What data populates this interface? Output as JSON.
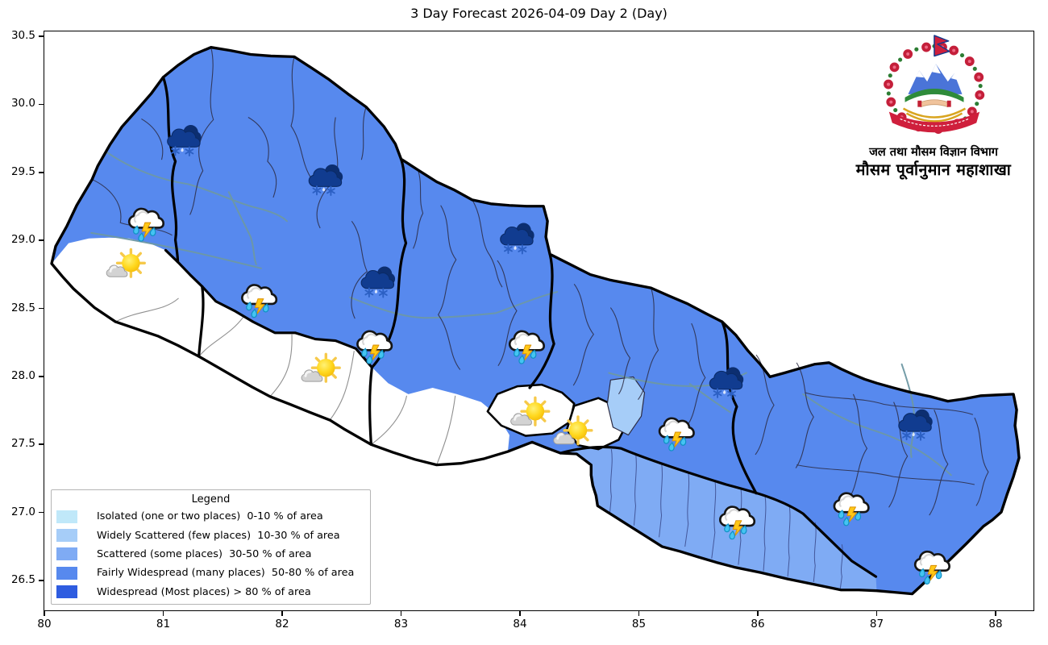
{
  "title": "3 Day Forecast 2026-04-09 Day 2 (Day)",
  "axes": {
    "x_tick_labels": [
      "80",
      "81",
      "82",
      "83",
      "84",
      "85",
      "86",
      "87",
      "88"
    ],
    "y_tick_labels": [
      "30.5",
      "30.0",
      "29.5",
      "29.0",
      "28.5",
      "28.0",
      "27.5",
      "27.0",
      "26.5"
    ]
  },
  "legend": {
    "title": "Legend",
    "items": [
      {
        "label": "Isolated (one or two places)  0-10 % of area",
        "color": "#c0e8f9"
      },
      {
        "label": "Widely Scattered (few places)  10-30 % of area",
        "color": "#a6cdf8"
      },
      {
        "label": "Scattered (some places)  30-50 % of area",
        "color": "#7fabf4"
      },
      {
        "label": "Fairly Widespread (many places)  50-80 % of area",
        "color": "#5789ee"
      },
      {
        "label": "Widespread (Most places) > 80 % of area",
        "color": "#2e5ce0"
      }
    ]
  },
  "logo": {
    "department_line": "जल तथा मौसम विज्ञान विभाग",
    "division_line": "मौसम पूर्वानुमान महाशाखा"
  },
  "map": {
    "colors": {
      "fairly_widespread": "#5789ee",
      "scattered": "#7fabf4",
      "widely_scattered": "#a6cdf8",
      "clear": "#ffffff",
      "province_border": "#000000",
      "district_border": "#2c2c44",
      "river": "#6e98a4"
    },
    "regions": [
      {
        "name": "most-hill-and-mountain-districts",
        "level": "Fairly Widespread (many places) 50-80 % of area",
        "color": "#5789ee"
      },
      {
        "name": "central-eastern-terai-belt",
        "level": "Scattered (some places) 30-50 % of area",
        "color": "#7fabf4"
      },
      {
        "name": "district-northeast-of-central-white-area",
        "level": "Widely Scattered (few places) 10-30 % of area",
        "color": "#a6cdf8"
      },
      {
        "name": "far-western-terai-and-inner-valleys",
        "level": "clear / no area coverage",
        "color": "#ffffff"
      },
      {
        "name": "two-central-districts",
        "level": "clear / no area coverage",
        "color": "#ffffff"
      }
    ],
    "icons": [
      {
        "type": "snow",
        "condition": "cloud with snowfall",
        "lon": 81.17,
        "lat": 29.73
      },
      {
        "type": "snow",
        "condition": "cloud with snowfall",
        "lon": 82.36,
        "lat": 29.44
      },
      {
        "type": "rain_thunder",
        "condition": "thunderstorm with rain",
        "lon": 80.85,
        "lat": 29.15
      },
      {
        "type": "partly_sunny",
        "condition": "partly sunny",
        "lon": 80.69,
        "lat": 28.79
      },
      {
        "type": "rain_thunder",
        "condition": "thunderstorm with rain",
        "lon": 81.8,
        "lat": 28.59
      },
      {
        "type": "snow",
        "condition": "cloud with snowfall",
        "lon": 82.8,
        "lat": 28.69
      },
      {
        "type": "rain_thunder",
        "condition": "thunderstorm with rain",
        "lon": 82.77,
        "lat": 28.25
      },
      {
        "type": "partly_sunny",
        "condition": "partly sunny",
        "lon": 82.33,
        "lat": 28.02
      },
      {
        "type": "snow",
        "condition": "cloud with snowfall",
        "lon": 83.97,
        "lat": 29.01
      },
      {
        "type": "rain_thunder",
        "condition": "thunderstorm with rain",
        "lon": 84.05,
        "lat": 28.25
      },
      {
        "type": "partly_sunny",
        "condition": "partly sunny",
        "lon": 84.09,
        "lat": 27.7
      },
      {
        "type": "partly_sunny",
        "condition": "partly sunny",
        "lon": 84.45,
        "lat": 27.56
      },
      {
        "type": "rain_thunder",
        "condition": "thunderstorm with rain",
        "lon": 85.31,
        "lat": 27.61
      },
      {
        "type": "snow",
        "condition": "cloud with snowfall",
        "lon": 85.73,
        "lat": 27.95
      },
      {
        "type": "rain_thunder",
        "condition": "thunderstorm with rain",
        "lon": 85.82,
        "lat": 26.96
      },
      {
        "type": "rain_thunder",
        "condition": "thunderstorm with rain",
        "lon": 86.78,
        "lat": 27.06
      },
      {
        "type": "snow",
        "condition": "cloud with snowfall",
        "lon": 87.32,
        "lat": 27.64
      },
      {
        "type": "rain_thunder",
        "condition": "thunderstorm with rain",
        "lon": 87.46,
        "lat": 26.63
      }
    ]
  }
}
